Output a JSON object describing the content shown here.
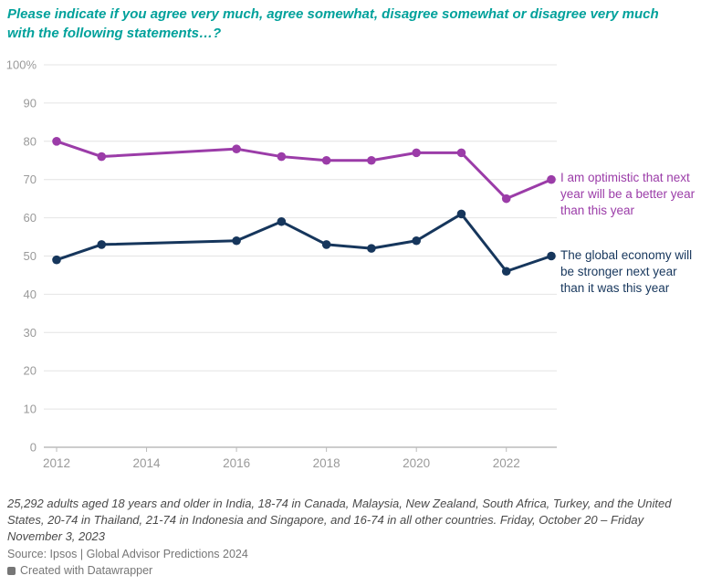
{
  "header": {
    "title": "Please indicate if you agree very much, agree somewhat, disagree somewhat or disagree very much with the following statements…?"
  },
  "chart_data": {
    "type": "line",
    "x": [
      2012,
      2013,
      2016,
      2017,
      2018,
      2019,
      2020,
      2021,
      2022,
      2023
    ],
    "series": [
      {
        "name": "I am optimistic that next year will be a better year than this year",
        "color": "#9b3ca8",
        "values": [
          80,
          76,
          78,
          76,
          75,
          75,
          77,
          77,
          65,
          70
        ]
      },
      {
        "name": "The global economy will be stronger next year than it was this year",
        "color": "#16365c",
        "values": [
          49,
          53,
          54,
          59,
          53,
          52,
          54,
          61,
          46,
          50
        ]
      }
    ],
    "ylim": [
      0,
      100
    ],
    "yticks": [
      0,
      10,
      20,
      30,
      40,
      50,
      60,
      70,
      80,
      90,
      100
    ],
    "ytick_labels": [
      "0",
      "10",
      "20",
      "30",
      "40",
      "50",
      "60",
      "70",
      "80",
      "90",
      "100%"
    ],
    "xticks": [
      2012,
      2014,
      2016,
      2018,
      2020,
      2022
    ],
    "grid": true,
    "legend_position": "right",
    "colors": {
      "grid": "#e4e4e4",
      "baseline": "#999999",
      "axis_text": "#9a9a9a",
      "title_accent": "#00a19b"
    }
  },
  "footer": {
    "note": "25,292 adults aged 18 years and older in India, 18-74 in Canada, Malaysia, New Zealand, South Africa, Turkey, and the United States, 20-74 in Thailand, 21-74 in Indonesia and Singapore, and 16-74 in all other countries. Friday, October 20 – Friday November 3, 2023",
    "source": "Source: Ipsos | Global Advisor Predictions 2024",
    "attribution": "Created with Datawrapper"
  }
}
